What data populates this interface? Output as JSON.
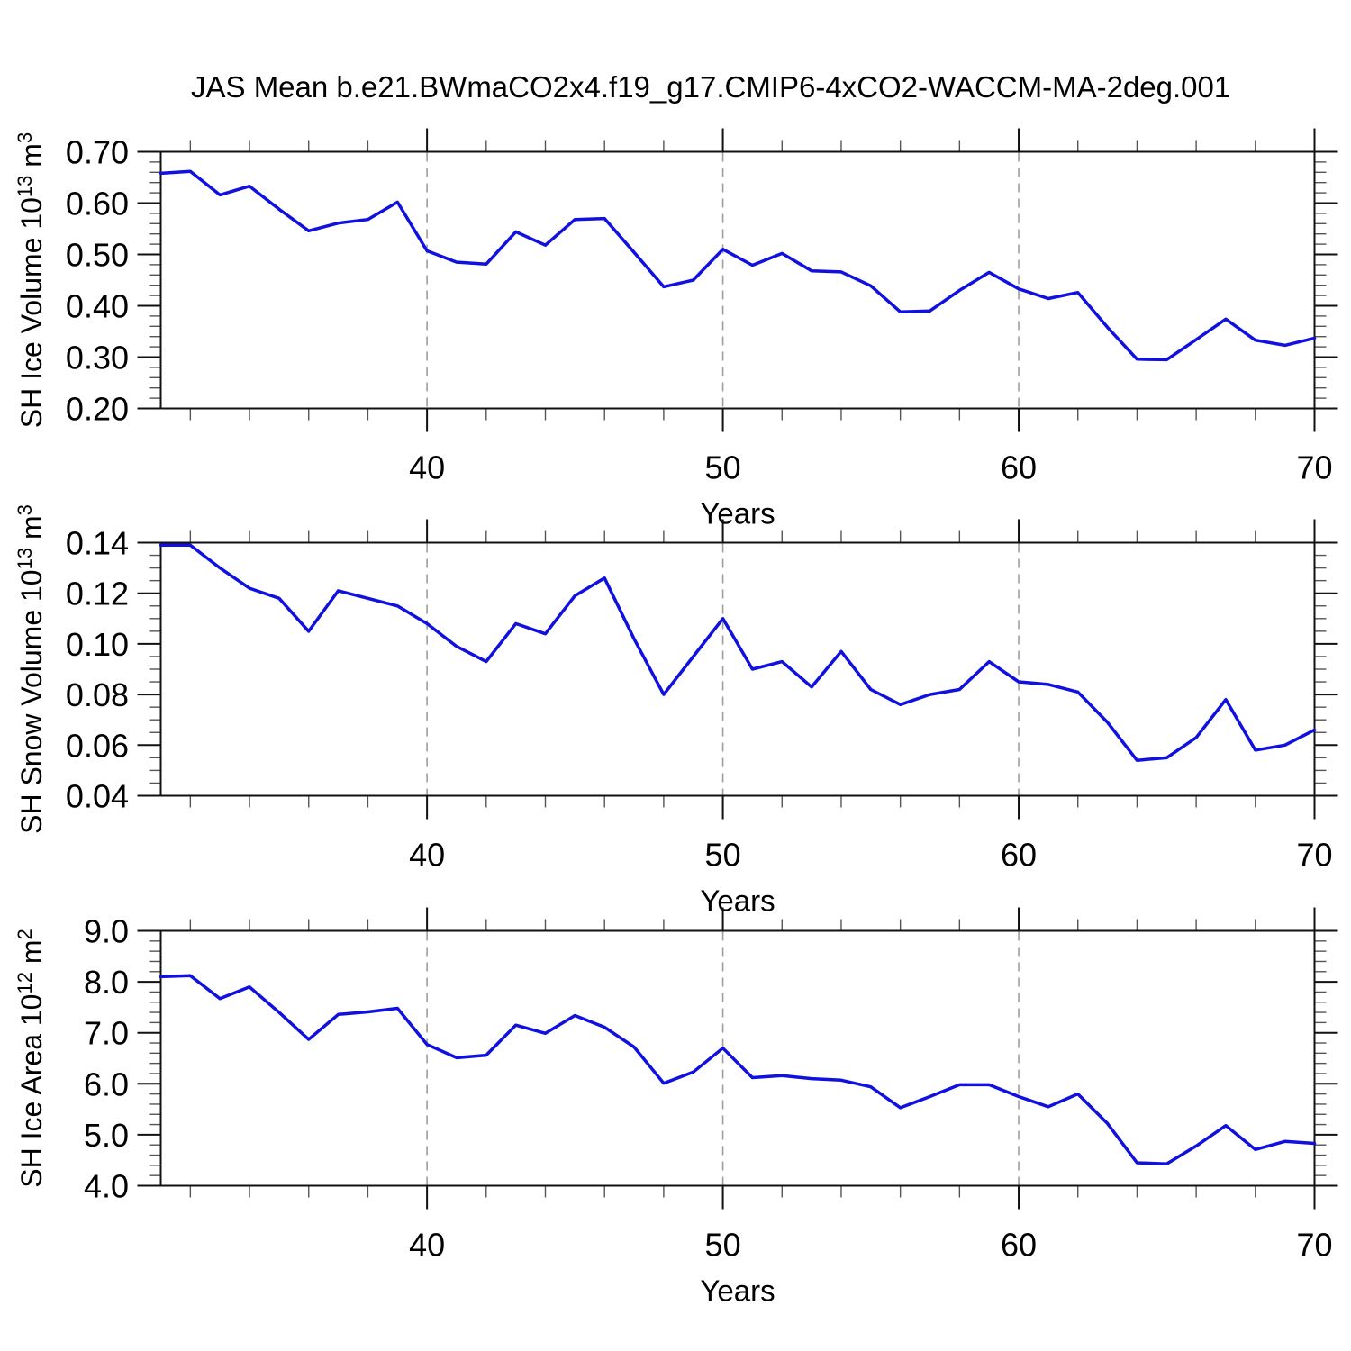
{
  "title": "JAS Mean b.e21.BWmaCO2x4.f19_g17.CMIP6-4xCO2-WACCM-MA-2deg.001",
  "styles": {
    "line_color": "#1010e0",
    "axis_color": "#111111",
    "major_tick_color": "#111111",
    "minor_tick_color": "#555555",
    "grid_color": "#9e9e9e",
    "text_color": "#000000",
    "background": "#ffffff"
  },
  "chart_data": [
    {
      "type": "line",
      "name": "sh-ice-volume",
      "ylabel_plain": "SH Ice Volume 10^13 m^3",
      "ylabel_segments": [
        {
          "t": "SH Ice Volume 10"
        },
        {
          "t": "13",
          "sup": true
        },
        {
          "t": " m"
        },
        {
          "t": "3",
          "sup": true
        }
      ],
      "xlabel": "Years",
      "xlim": [
        31,
        70
      ],
      "ylim": [
        0.2,
        0.7
      ],
      "yticks": [
        {
          "v": 0.2,
          "label": "0.20"
        },
        {
          "v": 0.3,
          "label": "0.30"
        },
        {
          "v": 0.4,
          "label": "0.40"
        },
        {
          "v": 0.5,
          "label": "0.50"
        },
        {
          "v": 0.6,
          "label": "0.60"
        },
        {
          "v": 0.7,
          "label": "0.70"
        }
      ],
      "y_minor_step": 0.02,
      "xticks": [
        {
          "v": 40,
          "label": "40"
        },
        {
          "v": 50,
          "label": "50"
        },
        {
          "v": 60,
          "label": "60"
        },
        {
          "v": 70,
          "label": "70"
        }
      ],
      "x_minor_step": 2,
      "grid_x": [
        40,
        50,
        60
      ],
      "grid_style": "dashed-vertical-at-major-x",
      "legend": "none",
      "x": [
        31,
        32,
        33,
        34,
        35,
        36,
        37,
        38,
        39,
        40,
        41,
        42,
        43,
        44,
        45,
        46,
        47,
        48,
        49,
        50,
        51,
        52,
        53,
        54,
        55,
        56,
        57,
        58,
        59,
        60,
        61,
        62,
        63,
        64,
        65,
        66,
        67,
        68,
        69,
        70
      ],
      "values": [
        0.658,
        0.662,
        0.616,
        0.633,
        0.588,
        0.546,
        0.561,
        0.568,
        0.602,
        0.507,
        0.485,
        0.481,
        0.544,
        0.518,
        0.568,
        0.57,
        0.504,
        0.437,
        0.45,
        0.51,
        0.479,
        0.502,
        0.468,
        0.466,
        0.439,
        0.388,
        0.39,
        0.43,
        0.465,
        0.433,
        0.414,
        0.426,
        0.358,
        0.296,
        0.295,
        0.334,
        0.374,
        0.333,
        0.323,
        0.337
      ]
    },
    {
      "type": "line",
      "name": "sh-snow-volume",
      "ylabel_plain": "SH Snow Volume 10^13 m^3",
      "ylabel_segments": [
        {
          "t": "SH Snow Volume 10"
        },
        {
          "t": "13",
          "sup": true
        },
        {
          "t": " m"
        },
        {
          "t": "3",
          "sup": true
        }
      ],
      "xlabel": "Years",
      "xlim": [
        31,
        70
      ],
      "ylim": [
        0.04,
        0.14
      ],
      "yticks": [
        {
          "v": 0.04,
          "label": "0.04"
        },
        {
          "v": 0.06,
          "label": "0.06"
        },
        {
          "v": 0.08,
          "label": "0.08"
        },
        {
          "v": 0.1,
          "label": "0.10"
        },
        {
          "v": 0.12,
          "label": "0.12"
        },
        {
          "v": 0.14,
          "label": "0.14"
        }
      ],
      "y_minor_step": 0.005,
      "xticks": [
        {
          "v": 40,
          "label": "40"
        },
        {
          "v": 50,
          "label": "50"
        },
        {
          "v": 60,
          "label": "60"
        },
        {
          "v": 70,
          "label": "70"
        }
      ],
      "x_minor_step": 2,
      "grid_x": [
        40,
        50,
        60
      ],
      "grid_style": "dashed-vertical-at-major-x",
      "legend": "none",
      "x": [
        31,
        32,
        33,
        34,
        35,
        36,
        37,
        38,
        39,
        40,
        41,
        42,
        43,
        44,
        45,
        46,
        47,
        48,
        49,
        50,
        51,
        52,
        53,
        54,
        55,
        56,
        57,
        58,
        59,
        60,
        61,
        62,
        63,
        64,
        65,
        66,
        67,
        68,
        69,
        70
      ],
      "values": [
        0.139,
        0.139,
        0.13,
        0.122,
        0.118,
        0.105,
        0.121,
        0.118,
        0.115,
        0.108,
        0.099,
        0.093,
        0.108,
        0.104,
        0.119,
        0.126,
        0.102,
        0.08,
        0.095,
        0.11,
        0.09,
        0.093,
        0.083,
        0.097,
        0.082,
        0.076,
        0.08,
        0.082,
        0.093,
        0.085,
        0.084,
        0.081,
        0.069,
        0.054,
        0.055,
        0.063,
        0.078,
        0.058,
        0.06,
        0.066
      ]
    },
    {
      "type": "line",
      "name": "sh-ice-area",
      "ylabel_plain": "SH Ice Area 10^12 m^2",
      "ylabel_segments": [
        {
          "t": "SH Ice Area 10"
        },
        {
          "t": "12",
          "sup": true
        },
        {
          "t": " m"
        },
        {
          "t": "2",
          "sup": true
        }
      ],
      "xlabel": "Years",
      "xlim": [
        31,
        70
      ],
      "ylim": [
        4.0,
        9.0
      ],
      "yticks": [
        {
          "v": 4.0,
          "label": "4.0"
        },
        {
          "v": 5.0,
          "label": "5.0"
        },
        {
          "v": 6.0,
          "label": "6.0"
        },
        {
          "v": 7.0,
          "label": "7.0"
        },
        {
          "v": 8.0,
          "label": "8.0"
        },
        {
          "v": 9.0,
          "label": "9.0"
        }
      ],
      "y_minor_step": 0.2,
      "xticks": [
        {
          "v": 40,
          "label": "40"
        },
        {
          "v": 50,
          "label": "50"
        },
        {
          "v": 60,
          "label": "60"
        },
        {
          "v": 70,
          "label": "70"
        }
      ],
      "x_minor_step": 2,
      "grid_x": [
        40,
        50,
        60
      ],
      "grid_style": "dashed-vertical-at-major-x",
      "legend": "none",
      "x": [
        31,
        32,
        33,
        34,
        35,
        36,
        37,
        38,
        39,
        40,
        41,
        42,
        43,
        44,
        45,
        46,
        47,
        48,
        49,
        50,
        51,
        52,
        53,
        54,
        55,
        56,
        57,
        58,
        59,
        60,
        61,
        62,
        63,
        64,
        65,
        66,
        67,
        68,
        69,
        70
      ],
      "values": [
        8.1,
        8.12,
        7.67,
        7.9,
        7.4,
        6.87,
        7.36,
        7.41,
        7.48,
        6.77,
        6.51,
        6.56,
        7.15,
        6.99,
        7.34,
        7.11,
        6.72,
        6.01,
        6.23,
        6.7,
        6.12,
        6.16,
        6.1,
        6.07,
        5.94,
        5.53,
        5.75,
        5.98,
        5.98,
        5.75,
        5.55,
        5.8,
        5.22,
        4.45,
        4.43,
        4.78,
        5.18,
        4.71,
        4.87,
        4.83
      ]
    }
  ]
}
